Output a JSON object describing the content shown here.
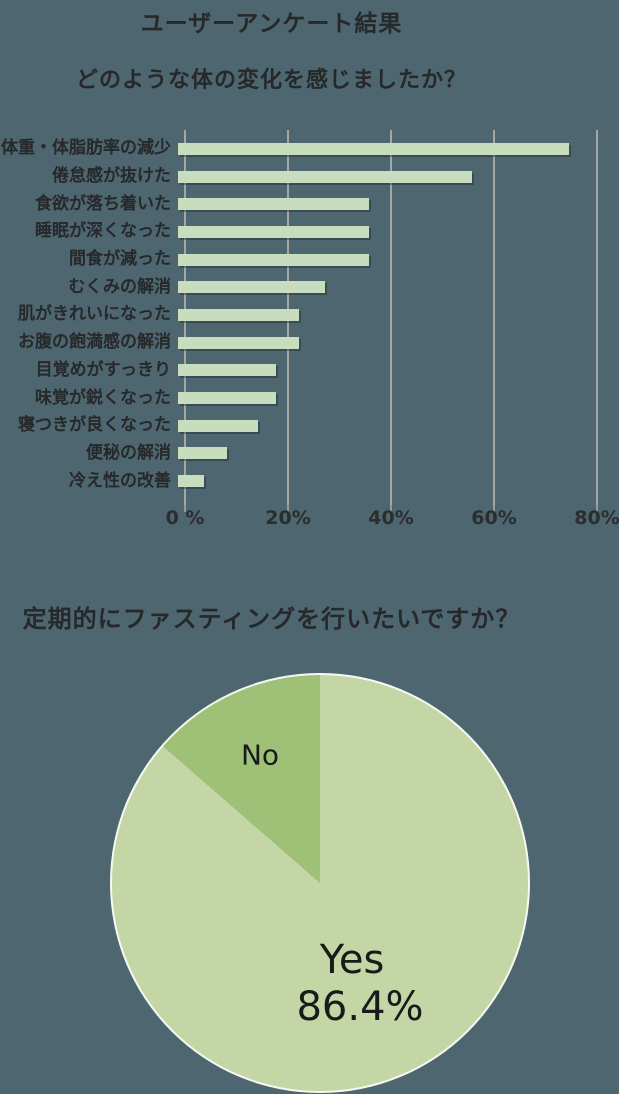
{
  "page": {
    "background_color": "#4d6670",
    "text_color": "#26282a"
  },
  "header": {
    "title": "ユーザーアンケート結果",
    "question1": "どのような体の変化を感じましたか？",
    "question2": "定期的にファスティングを行いたいですか？"
  },
  "chart_data": [
    {
      "type": "bar",
      "orientation": "horizontal",
      "title": "どのような体の変化を感じましたか？",
      "categories": [
        "体重・体脂肪率の減少",
        "倦怠感が抜けた",
        "食欲が落ち着いた",
        "睡眠が深くなった",
        "間食が減った",
        "むくみの解消",
        "肌がきれいになった",
        "お腹の飽満感の解消",
        "目覚めがすっきり",
        "味覚が鋭くなった",
        "寝つきが良くなった",
        "便秘の解消",
        "冷え性の改善"
      ],
      "values": [
        76,
        57,
        37,
        37,
        37,
        28.5,
        23.5,
        23.5,
        19,
        19,
        15.5,
        9.5,
        5
      ],
      "unit": "%",
      "xlim": [
        0,
        80
      ],
      "x_ticks": [
        "0 %",
        "20%",
        "40%",
        "60%",
        "80%"
      ],
      "grid": true,
      "bar_color": "#c8dcbe",
      "gridline_color": "#a4a8a5"
    },
    {
      "type": "pie",
      "title": "定期的にファスティングを行いたいですか？",
      "slices": [
        {
          "label": "Yes",
          "value": 86.4,
          "color": "#c4d5a6"
        },
        {
          "label": "No",
          "value": 13.6,
          "color": "#9ec077"
        }
      ],
      "start_angle_deg": 0,
      "direction": "clockwise",
      "value_label": "86.4%",
      "legend_position": "inside"
    }
  ]
}
